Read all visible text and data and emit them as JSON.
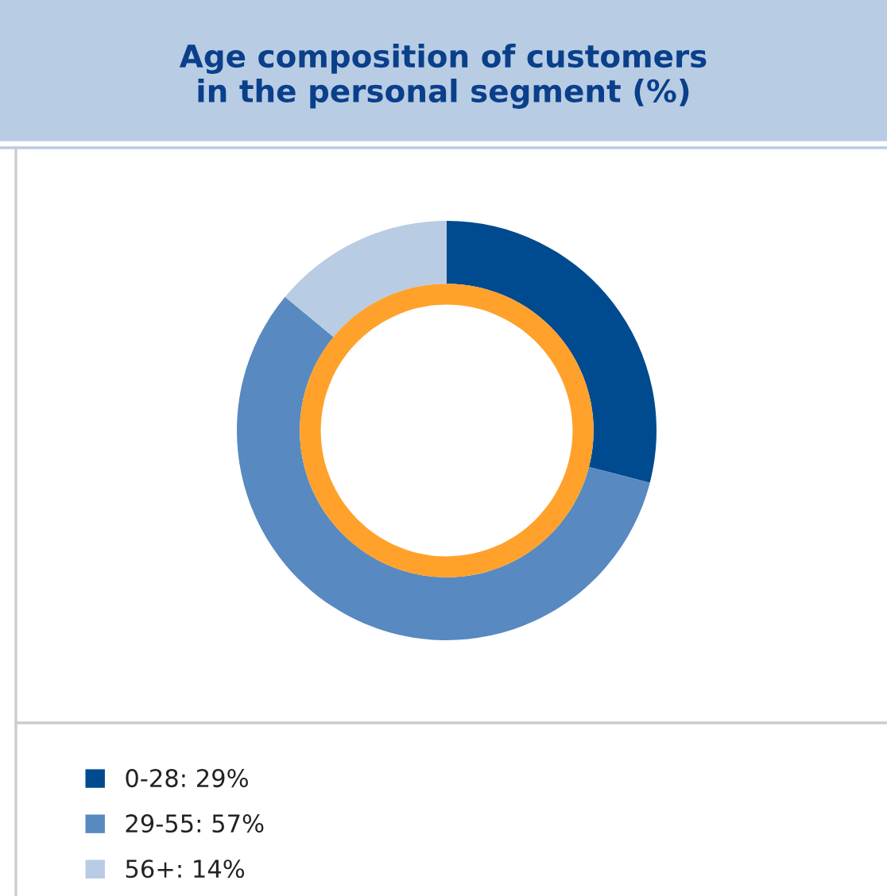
{
  "chart_data": {
    "type": "donut",
    "title": "Age composition of customers\nin the personal segment (%)",
    "categories": [
      "0-28",
      "29-55",
      "56+"
    ],
    "values": [
      29,
      57,
      14
    ],
    "value_labels": [
      "29%",
      "57%",
      "14%"
    ],
    "colors": [
      "#004a8f",
      "#5889c0",
      "#b8cce4"
    ],
    "legend": "bottom left"
  }
}
